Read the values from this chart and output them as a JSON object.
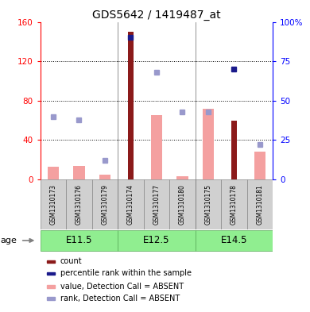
{
  "title": "GDS5642 / 1419487_at",
  "samples": [
    "GSM1310173",
    "GSM1310176",
    "GSM1310179",
    "GSM1310174",
    "GSM1310177",
    "GSM1310180",
    "GSM1310175",
    "GSM1310178",
    "GSM1310181"
  ],
  "count_values": [
    0,
    0,
    0,
    150,
    0,
    0,
    0,
    60,
    0
  ],
  "percentile_rank_values": [
    0,
    0,
    0,
    90,
    0,
    0,
    0,
    70,
    0
  ],
  "value_absent": [
    13,
    14,
    5,
    0,
    65,
    3,
    72,
    0,
    28
  ],
  "rank_absent": [
    40,
    38,
    12,
    0,
    68,
    43,
    43,
    0,
    22
  ],
  "age_labels": [
    "E11.5",
    "E12.5",
    "E14.5"
  ],
  "age_starts": [
    0,
    3,
    6
  ],
  "age_ends": [
    3,
    6,
    9
  ],
  "ylim_left": [
    0,
    160
  ],
  "ylim_right": [
    0,
    100
  ],
  "yticks_left": [
    0,
    40,
    80,
    120,
    160
  ],
  "yticks_right": [
    0,
    25,
    50,
    75,
    100
  ],
  "ytick_labels_right": [
    "0",
    "25",
    "50",
    "75",
    "100%"
  ],
  "color_count": "#8B1A1A",
  "color_percentile": "#1A1A8B",
  "color_value_absent": "#F4A0A0",
  "color_rank_absent": "#9999CC",
  "background_color": "#ffffff",
  "plot_bg_color": "#ffffff",
  "sample_box_color": "#d0d0d0",
  "age_box_color": "#90EE90",
  "legend_items": [
    {
      "label": "count",
      "color": "#8B1A1A"
    },
    {
      "label": "percentile rank within the sample",
      "color": "#1A1A8B"
    },
    {
      "label": "value, Detection Call = ABSENT",
      "color": "#F4A0A0"
    },
    {
      "label": "rank, Detection Call = ABSENT",
      "color": "#9999CC"
    }
  ]
}
